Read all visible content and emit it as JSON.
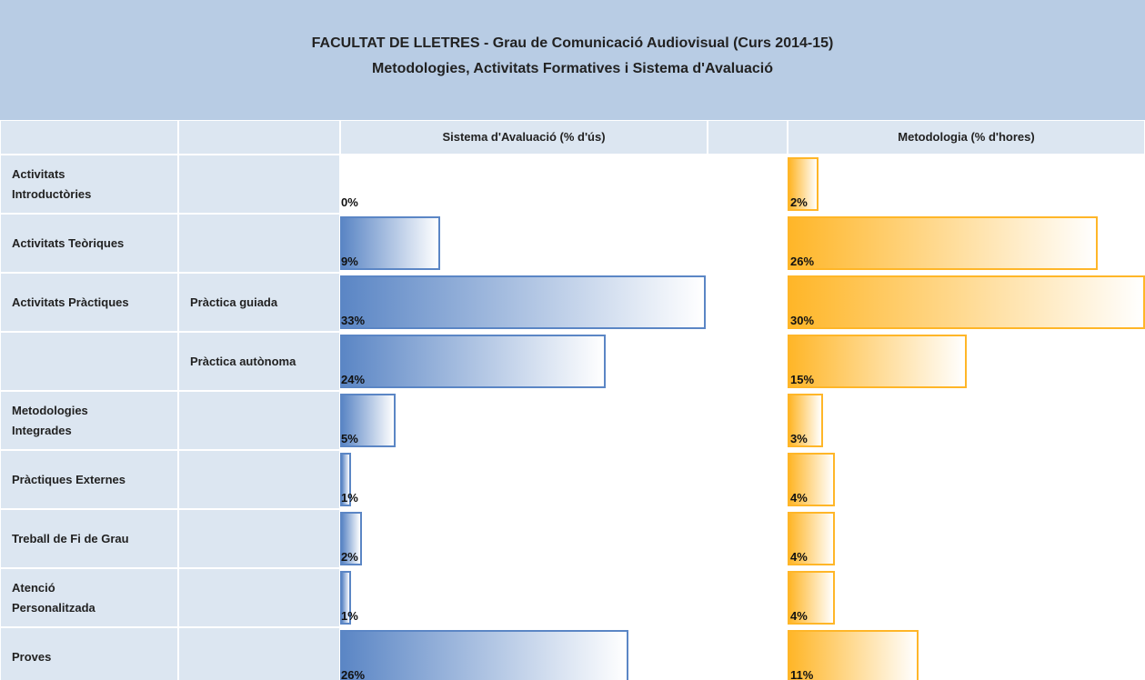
{
  "header": {
    "title": "FACULTAT DE LLETRES - Grau de Comunicació Audiovisual (Curs 2014-15)",
    "subtitle": "Metodologies, Activitats Formatives i Sistema d'Avaluació"
  },
  "columns": {
    "evaluation": "Sistema d'Avaluació (% d'ús)",
    "methodology": "Metodologia (% d'hores)"
  },
  "eval_color": "#5b86c5",
  "method_color": "#ffb628",
  "rows": [
    {
      "label": "Activitats\nIntroductòries",
      "evaluation": 0,
      "evaluation_label": "0%",
      "methodology": 2,
      "methodology_label": "2%"
    },
    {
      "label": "Activitats Teòriques",
      "evaluation": 9,
      "evaluation_label": "9%",
      "methodology": 26,
      "methodology_label": "26%"
    },
    {
      "label": "Activitats Pràctiques",
      "sublabel": "Pràctica guiada",
      "evaluation": 33,
      "evaluation_label": "33%",
      "methodology": 30,
      "methodology_label": "30%"
    },
    {
      "sublabel": "Pràctica autònoma",
      "evaluation": 24,
      "evaluation_label": "24%",
      "methodology": 15,
      "methodology_label": "15%"
    },
    {
      "label": "Metodologies\nIntegrades",
      "evaluation": 5,
      "evaluation_label": "5%",
      "methodology": 3,
      "methodology_label": "3%"
    },
    {
      "label": "Pràctiques Externes",
      "evaluation": 1,
      "evaluation_label": "1%",
      "methodology": 4,
      "methodology_label": "4%"
    },
    {
      "label": "Treball de Fi de Grau",
      "evaluation": 2,
      "evaluation_label": "2%",
      "methodology": 4,
      "methodology_label": "4%"
    },
    {
      "label": "Atenció\nPersonalitzada",
      "evaluation": 1,
      "evaluation_label": "1%",
      "methodology": 4,
      "methodology_label": "4%"
    },
    {
      "label": "Proves",
      "evaluation": 26,
      "evaluation_label": "26%",
      "methodology": 11,
      "methodology_label": "11%"
    }
  ]
}
